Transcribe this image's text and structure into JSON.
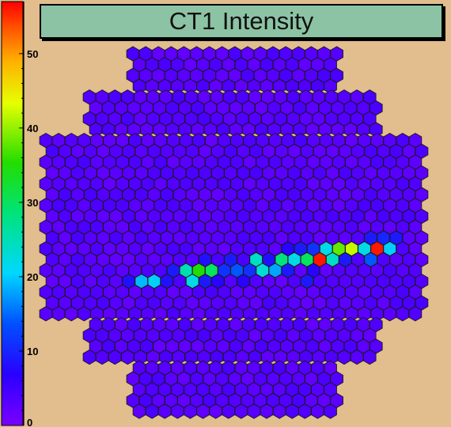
{
  "chart_data": {
    "type": "heatmap",
    "title": "CT1 Intensity",
    "geometry": "hexagonal camera pixels",
    "colorbar": {
      "ticks": [
        0,
        10,
        20,
        30,
        40,
        50
      ],
      "labels": [
        "0",
        "10",
        "20",
        "30",
        "40",
        "50"
      ],
      "range": [
        0,
        57
      ],
      "palette": "rainbow (purple to red)"
    },
    "background_level": 2,
    "hot_pixels": [
      {
        "row": 11,
        "col": 12,
        "value": 56
      },
      {
        "row": 10,
        "col": 17,
        "value": 56
      },
      {
        "row": 10,
        "col": 15,
        "value": 42
      },
      {
        "row": 10,
        "col": 14,
        "value": 38
      },
      {
        "row": 11,
        "col": 11,
        "value": 30
      },
      {
        "row": 11,
        "col": 10,
        "value": 22
      },
      {
        "row": 10,
        "col": 13,
        "value": 22
      },
      {
        "row": 11,
        "col": 9,
        "value": 28
      },
      {
        "row": 12,
        "col": 8,
        "value": 23
      },
      {
        "row": 10,
        "col": 16,
        "value": 22
      },
      {
        "row": 10,
        "col": 18,
        "value": 20
      },
      {
        "row": 11,
        "col": 7,
        "value": 24
      },
      {
        "row": 12,
        "col": 4,
        "value": 30
      },
      {
        "row": 12,
        "col": 3,
        "value": 35
      },
      {
        "row": 12,
        "col": 2,
        "value": 25
      },
      {
        "row": 13,
        "col": 2,
        "value": 22
      },
      {
        "row": 13,
        "col": -1,
        "value": 20
      },
      {
        "row": 13,
        "col": -2,
        "value": 19
      },
      {
        "row": 11,
        "col": 13,
        "value": 24
      },
      {
        "row": 12,
        "col": 9,
        "value": 18
      },
      {
        "row": 11,
        "col": 16,
        "value": 14
      },
      {
        "row": 12,
        "col": 6,
        "value": 14
      },
      {
        "row": 12,
        "col": 5,
        "value": 11
      },
      {
        "row": 12,
        "col": 7,
        "value": 11
      },
      {
        "row": 9,
        "col": 17,
        "value": 10
      },
      {
        "row": 9,
        "col": 18,
        "value": 9
      },
      {
        "row": 9,
        "col": 16,
        "value": 9
      },
      {
        "row": 10,
        "col": 12,
        "value": 11
      },
      {
        "row": 10,
        "col": 11,
        "value": 9
      },
      {
        "row": 11,
        "col": 5,
        "value": 9
      },
      {
        "row": 11,
        "col": 3,
        "value": 8
      },
      {
        "row": 12,
        "col": 1,
        "value": 9
      },
      {
        "row": 13,
        "col": 0,
        "value": 8
      },
      {
        "row": 13,
        "col": 3,
        "value": 9
      },
      {
        "row": 13,
        "col": 11,
        "value": 9
      },
      {
        "row": 12,
        "col": 10,
        "value": 9
      },
      {
        "row": 11,
        "col": 14,
        "value": 9
      },
      {
        "row": 11,
        "col": 8,
        "value": 8
      },
      {
        "row": 13,
        "col": -3,
        "value": 8
      },
      {
        "row": 13,
        "col": 6,
        "value": 7
      },
      {
        "row": 12,
        "col": 12,
        "value": 7
      },
      {
        "row": 10,
        "col": 10,
        "value": 7
      },
      {
        "row": 13,
        "col": 4,
        "value": 7
      }
    ]
  }
}
